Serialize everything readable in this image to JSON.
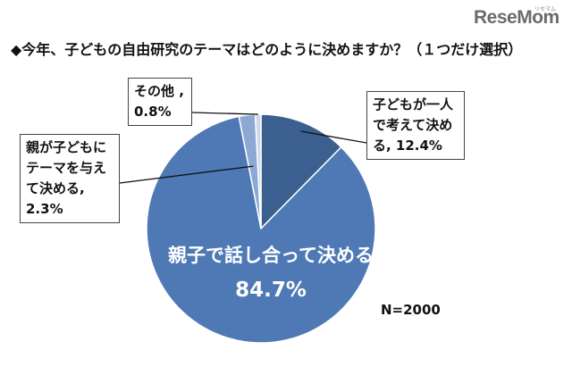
{
  "watermark": {
    "brand": "ReseMom",
    "sub": "リセマム"
  },
  "chart_data": {
    "type": "pie",
    "title": "◆今年、子どもの自由研究のテーマはどのように決めますか？（１つだけ選択）",
    "start_angle_deg": 0,
    "direction": "clockwise",
    "slices": [
      {
        "name": "子どもが一人で考えて決める",
        "value": 12.4,
        "label_lines": [
          "子どもが一人",
          "で考えて決め",
          "る, 12.4%"
        ],
        "color": "#3b5f8e"
      },
      {
        "name": "親子で話し合って決める",
        "value": 84.7,
        "label_name": "親子で話し合って決める",
        "label_value": "84.7%",
        "color": "#4f79b5"
      },
      {
        "name": "親が子どもにテーマを与えて決める",
        "value": 2.3,
        "label_lines": [
          "親が子どもに",
          "テーマを与え",
          "て決める,",
          "2.3%"
        ],
        "color": "#8ea8d4"
      },
      {
        "name": "その他",
        "value": 0.8,
        "label_lines": [
          "その他 ,",
          "0.8%"
        ],
        "color": "#cdd8ea"
      }
    ],
    "sample_size": "N=2000"
  }
}
